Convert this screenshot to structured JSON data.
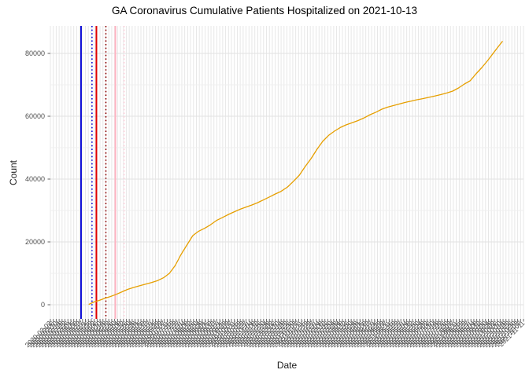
{
  "chart_data": {
    "type": "line",
    "title": "GA Coronavirus Cumulative Patients Hospitalized on 2021-10-13",
    "xlabel": "Date",
    "ylabel": "Count",
    "grid": true,
    "legend": "none",
    "x_axis": {
      "start": "2020-02-02",
      "end": "2021-11-11",
      "tick_interval_days": 4,
      "tick_label_format": "YYYY-MM-DD",
      "tick_labels_rotated_degrees": 45,
      "tick_labels_overlapping": true
    },
    "y_axis": {
      "tick_values": [
        0,
        20000,
        40000,
        60000,
        80000
      ],
      "tick_labels": [
        "0",
        "20000",
        "40000",
        "60000",
        "80000"
      ],
      "minor_step": 10000,
      "range": [
        0,
        88000
      ]
    },
    "series": [
      {
        "name": "cumulative-patients-hospitalized",
        "color": "#E69F00",
        "points": [
          [
            "2020-03-26",
            150
          ],
          [
            "2020-04-02",
            900
          ],
          [
            "2020-04-08",
            1300
          ],
          [
            "2020-04-16",
            2000
          ],
          [
            "2020-04-24",
            2600
          ],
          [
            "2020-05-02",
            3300
          ],
          [
            "2020-05-10",
            4100
          ],
          [
            "2020-05-18",
            4900
          ],
          [
            "2020-05-26",
            5500
          ],
          [
            "2020-06-04",
            6100
          ],
          [
            "2020-06-12",
            6600
          ],
          [
            "2020-06-20",
            7100
          ],
          [
            "2020-06-28",
            7700
          ],
          [
            "2020-07-06",
            8600
          ],
          [
            "2020-07-14",
            10000
          ],
          [
            "2020-07-22",
            12500
          ],
          [
            "2020-07-30",
            16000
          ],
          [
            "2020-08-07",
            19000
          ],
          [
            "2020-08-15",
            22000
          ],
          [
            "2020-08-23",
            23400
          ],
          [
            "2020-08-31",
            24300
          ],
          [
            "2020-09-08",
            25400
          ],
          [
            "2020-09-17",
            26900
          ],
          [
            "2020-09-25",
            27800
          ],
          [
            "2020-10-03",
            28750
          ],
          [
            "2020-10-11",
            29600
          ],
          [
            "2020-10-19",
            30400
          ],
          [
            "2020-10-27",
            31100
          ],
          [
            "2020-11-04",
            31750
          ],
          [
            "2020-11-12",
            32500
          ],
          [
            "2020-11-20",
            33400
          ],
          [
            "2020-11-28",
            34300
          ],
          [
            "2020-12-06",
            35250
          ],
          [
            "2020-12-14",
            36100
          ],
          [
            "2020-12-23",
            37500
          ],
          [
            "2020-12-31",
            39300
          ],
          [
            "2021-01-08",
            41250
          ],
          [
            "2021-01-16",
            44000
          ],
          [
            "2021-01-24",
            46500
          ],
          [
            "2021-02-01",
            49400
          ],
          [
            "2021-02-09",
            52000
          ],
          [
            "2021-02-17",
            53900
          ],
          [
            "2021-02-25",
            55250
          ],
          [
            "2021-03-05",
            56400
          ],
          [
            "2021-03-13",
            57250
          ],
          [
            "2021-03-21",
            57900
          ],
          [
            "2021-03-29",
            58600
          ],
          [
            "2021-04-06",
            59400
          ],
          [
            "2021-04-15",
            60500
          ],
          [
            "2021-04-23",
            61300
          ],
          [
            "2021-05-01",
            62250
          ],
          [
            "2021-05-09",
            62900
          ],
          [
            "2021-05-17",
            63400
          ],
          [
            "2021-05-25",
            63900
          ],
          [
            "2021-06-02",
            64400
          ],
          [
            "2021-06-10",
            64800
          ],
          [
            "2021-06-18",
            65250
          ],
          [
            "2021-06-26",
            65600
          ],
          [
            "2021-07-04",
            66000
          ],
          [
            "2021-07-12",
            66400
          ],
          [
            "2021-07-21",
            66900
          ],
          [
            "2021-07-29",
            67400
          ],
          [
            "2021-08-06",
            68000
          ],
          [
            "2021-08-14",
            69000
          ],
          [
            "2021-08-22",
            70250
          ],
          [
            "2021-08-30",
            71300
          ],
          [
            "2021-09-07",
            73500
          ],
          [
            "2021-09-15",
            75500
          ],
          [
            "2021-09-23",
            77750
          ],
          [
            "2021-10-01",
            80200
          ],
          [
            "2021-10-07",
            82000
          ],
          [
            "2021-10-13",
            83800
          ]
        ]
      }
    ],
    "vlines": [
      {
        "date": "2020-03-15",
        "color": "#0B0BD6",
        "style": "solid"
      },
      {
        "date": "2020-03-30",
        "color": "#0B0BD6",
        "style": "dotted"
      },
      {
        "date": "2020-04-05",
        "color": "#E00000",
        "style": "solid"
      },
      {
        "date": "2020-04-18",
        "color": "#8B0000",
        "style": "dotted"
      },
      {
        "date": "2020-05-01",
        "color": "#FFB3C1",
        "style": "solid"
      },
      {
        "date": "2020-05-13",
        "color": "#FFD0DB",
        "style": "dotted"
      }
    ],
    "colors": {
      "background": "#FFFFFF",
      "grid_vertical": "#E7E7E7",
      "grid_major_horizontal": "#E2E2E2",
      "grid_minor_horizontal": "#EFEFEF",
      "axis_text": "#4D4D4D",
      "tick_marks": "#666666",
      "title_text": "#000000"
    }
  }
}
